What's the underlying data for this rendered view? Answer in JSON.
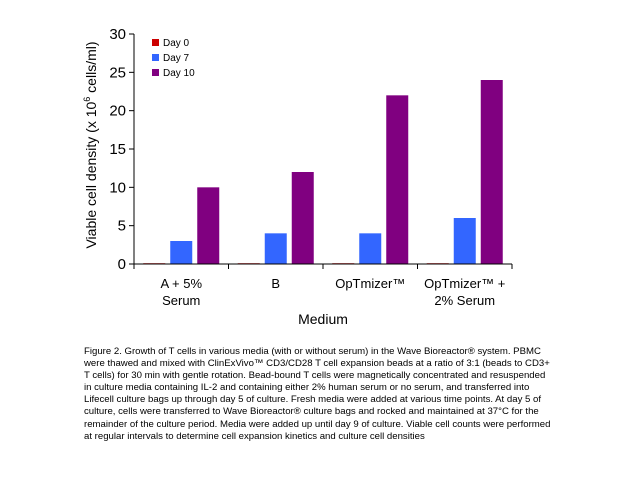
{
  "chart_data": {
    "type": "bar",
    "categories": [
      [
        "A + 5%",
        "Serum"
      ],
      [
        "B"
      ],
      [
        "OpTmizer™"
      ],
      [
        "OpTmizer™ +",
        "2% Serum"
      ]
    ],
    "series": [
      {
        "name": "Day 0",
        "color": "#cc0000",
        "values": [
          0.1,
          0.1,
          0.1,
          0.1
        ]
      },
      {
        "name": "Day 7",
        "color": "#3366ff",
        "values": [
          3,
          4,
          4,
          6
        ]
      },
      {
        "name": "Day 10",
        "color": "#800080",
        "values": [
          10,
          12,
          22,
          24
        ]
      }
    ],
    "xlabel": "Medium",
    "ylabel_parts": {
      "pre": "Viable cell density (x 10",
      "sup": "6",
      "post": " cells/ml)"
    },
    "ylim": [
      0,
      30
    ],
    "yticks": [
      0,
      5,
      10,
      15,
      20,
      25,
      30
    ],
    "grid": false,
    "legend_position": "top-left"
  },
  "caption": "Figure 2.  Growth of T cells in various media (with or without serum) in the Wave Bioreactor® system.  PBMC were thawed and mixed with ClinExVivo™ CD3/CD28 T cell expansion beads at a ratio of 3:1 (beads to CD3+ T cells) for 30 min with gentle rotation.  Bead-bound T cells were magnetically concentrated and resuspended in culture media containing IL-2 and containing either 2% human serum or no serum, and transferred into Lifecell culture bags up through day 5 of culture.  Fresh media were added at various time points.  At day 5 of culture, cells were transferred to Wave Bioreactor® culture bags and rocked and maintained at 37°C for the remainder of the culture period.  Media were added up until day 9 of culture.  Viable cell counts were performed at regular intervals to determine cell expansion kinetics and culture cell densities"
}
